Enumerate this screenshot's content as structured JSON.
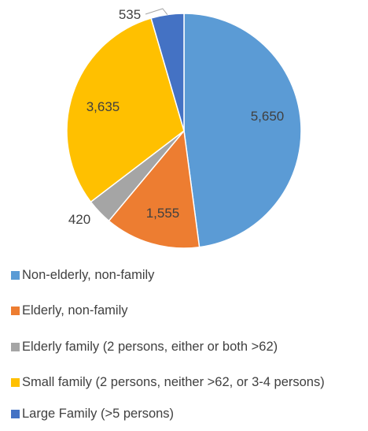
{
  "chart_data": {
    "type": "pie",
    "title": "",
    "slices": [
      {
        "label": "Non-elderly, non-family",
        "value": 5650,
        "display": "5,650",
        "color": "#5B9BD5"
      },
      {
        "label": "Elderly, non-family",
        "value": 1555,
        "display": "1,555",
        "color": "#ED7D31"
      },
      {
        "label": "Elderly family (2 persons, either or both >62)",
        "value": 420,
        "display": "420",
        "color": "#A5A5A5"
      },
      {
        "label": "Small family (2 persons, neither >62, or 3-4 persons)",
        "value": 3635,
        "display": "3,635",
        "color": "#FFC000"
      },
      {
        "label": "Large Family (>5 persons)",
        "value": 535,
        "display": "535",
        "color": "#4472C4"
      }
    ],
    "legend_position": "bottom"
  }
}
